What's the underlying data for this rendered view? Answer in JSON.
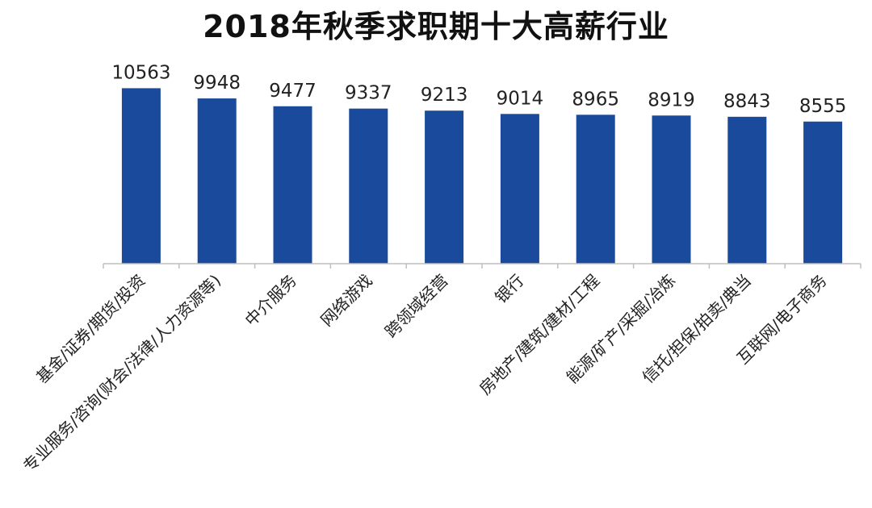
{
  "chart_data": {
    "type": "bar",
    "title": "2018年秋季求职期十大高薪行业",
    "xlabel": "",
    "ylabel": "",
    "ylim": [
      0,
      11000
    ],
    "grid": false,
    "legend": "none",
    "bar_color": "#1a4a9c",
    "categories": [
      "基金/证券/期货/投资",
      "专业服务/咨询(财会/法律/人力资源等)",
      "中介服务",
      "网络游戏",
      "跨领域经营",
      "银行",
      "房地产/建筑/建材/工程",
      "能源/矿产/采掘/冶炼",
      "信托/担保/拍卖/典当",
      "互联网/电子商务"
    ],
    "values": [
      10563,
      9948,
      9477,
      9337,
      9213,
      9014,
      8965,
      8919,
      8843,
      8555
    ]
  }
}
